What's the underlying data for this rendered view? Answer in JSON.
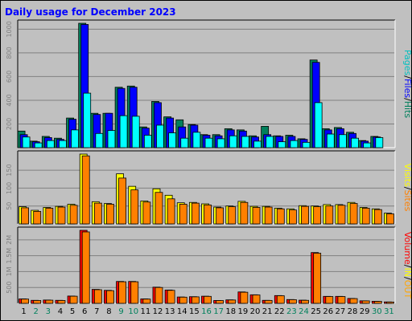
{
  "chart_data": {
    "title": "Daily usage for December 2023",
    "categories": [
      "1",
      "2",
      "3",
      "4",
      "5",
      "6",
      "7",
      "8",
      "9",
      "10",
      "11",
      "12",
      "13",
      "14",
      "15",
      "16",
      "17",
      "18",
      "19",
      "20",
      "21",
      "22",
      "23",
      "24",
      "25",
      "26",
      "27",
      "28",
      "29",
      "30",
      "31"
    ],
    "weekend_days": [
      "2",
      "3",
      "9",
      "10",
      "16",
      "17",
      "23",
      "24",
      "30",
      "31"
    ],
    "colors": {
      "hits": "#00805c",
      "files": "#0000ff",
      "pages": "#00ffff",
      "visits": "#ffff00",
      "sites": "#ff8000",
      "kbytes": "#ff0000",
      "weekday_label": "#000000",
      "weekend_label": "#00805c"
    },
    "panels": [
      {
        "type": "bar",
        "name": "hits_files_pages",
        "legend_parts": [
          {
            "text": "Pages",
            "color": "#00c0c0"
          },
          {
            "text": "/",
            "color": "#000000"
          },
          {
            "text": "Files",
            "color": "#0000ff"
          },
          {
            "text": "/",
            "color": "#000000"
          },
          {
            "text": "Hits",
            "color": "#00805c"
          }
        ],
        "ylim": [
          0,
          1050
        ],
        "yticks": [
          {
            "label": "1000",
            "value": 1000
          },
          {
            "label": "800",
            "value": 800
          },
          {
            "label": "600",
            "value": 600
          },
          {
            "label": "400",
            "value": 400
          },
          {
            "label": "200",
            "value": 200
          }
        ],
        "series": [
          {
            "name": "Hits",
            "key": "hits",
            "values": [
              140,
              55,
              95,
              80,
              250,
              1050,
              290,
              290,
              510,
              520,
              175,
              390,
              260,
              235,
              195,
              110,
              110,
              160,
              150,
              100,
              180,
              100,
              105,
              75,
              740,
              160,
              170,
              130,
              60,
              95,
              0
            ]
          },
          {
            "name": "Files",
            "key": "files",
            "values": [
              110,
              50,
              85,
              70,
              240,
              1040,
              280,
              290,
              500,
              510,
              165,
              380,
              250,
              175,
              190,
              105,
              100,
              150,
              140,
              90,
              110,
              95,
              95,
              70,
              720,
              150,
              160,
              120,
              55,
              90,
              0
            ]
          },
          {
            "name": "Pages",
            "key": "pages",
            "values": [
              90,
              40,
              60,
              60,
              150,
              460,
              120,
              145,
              270,
              265,
              105,
              190,
              125,
              80,
              130,
              80,
              75,
              100,
              95,
              55,
              95,
              50,
              60,
              45,
              380,
              115,
              110,
              80,
              40,
              85,
              0
            ]
          }
        ]
      },
      {
        "type": "bar",
        "name": "visits_sites",
        "legend_parts": [
          {
            "text": "Visits",
            "color": "#ffff00"
          },
          {
            "text": "/",
            "color": "#000000"
          },
          {
            "text": "Sites",
            "color": "#ff8000"
          }
        ],
        "ylim": [
          0,
          195
        ],
        "yticks": [
          {
            "label": "150",
            "value": 150
          },
          {
            "label": "100",
            "value": 100
          },
          {
            "label": "50",
            "value": 50
          }
        ],
        "series": [
          {
            "name": "Visits",
            "key": "visits",
            "values": [
              48,
              38,
              46,
              49,
              55,
              195,
              62,
              57,
              140,
              105,
              64,
              98,
              80,
              59,
              60,
              56,
              47,
              50,
              63,
              49,
              49,
              44,
              42,
              51,
              50,
              54,
              54,
              60,
              46,
              42,
              30
            ]
          },
          {
            "name": "Sites",
            "key": "sites",
            "values": [
              45,
              35,
              44,
              47,
              52,
              190,
              58,
              55,
              128,
              95,
              61,
              88,
              70,
              55,
              58,
              53,
              45,
              48,
              60,
              46,
              47,
              42,
              39,
              49,
              48,
              50,
              52,
              57,
              44,
              40,
              28
            ]
          }
        ]
      },
      {
        "type": "bar",
        "name": "volume",
        "legend_parts": [
          {
            "text": "Volume",
            "color": "#ff0000"
          },
          {
            "text": "/",
            "color": "#000000"
          },
          {
            "text": "IN",
            "color": "#ffff00"
          },
          {
            "text": "/",
            "color": "#000000"
          },
          {
            "text": "OUT",
            "color": "#ffa500"
          }
        ],
        "ylim": [
          0,
          2300
        ],
        "yticks": [
          {
            "label": "2M",
            "value": 2000
          },
          {
            "label": "1.5M",
            "value": 1500
          },
          {
            "label": "1M",
            "value": 1000
          },
          {
            "label": "500",
            "value": 500
          }
        ],
        "series": [
          {
            "name": "Volume",
            "key": "kbytes",
            "values": [
              140,
              95,
              105,
              95,
              230,
              2300,
              440,
              410,
              690,
              690,
              140,
              510,
              420,
              200,
              210,
              225,
              90,
              110,
              360,
              270,
              95,
              245,
              120,
              100,
              1600,
              220,
              220,
              155,
              80,
              65,
              45
            ]
          },
          {
            "name": "OUT",
            "key": "sites",
            "values": [
              135,
              90,
              100,
              90,
              225,
              2250,
              430,
              400,
              680,
              680,
              135,
              500,
              410,
              195,
              205,
              220,
              88,
              105,
              350,
              265,
              92,
              240,
              115,
              95,
              1580,
              215,
              215,
              150,
              78,
              62,
              42
            ]
          }
        ]
      }
    ]
  }
}
